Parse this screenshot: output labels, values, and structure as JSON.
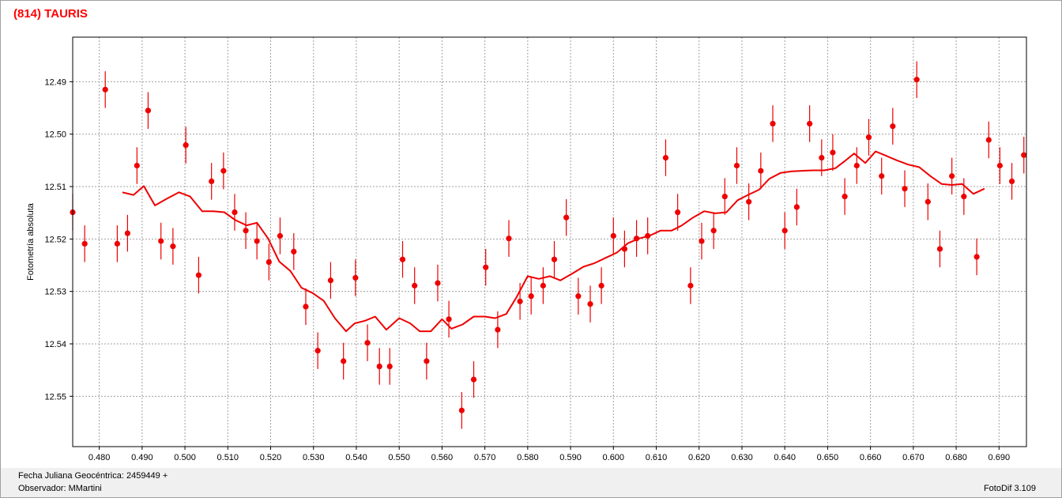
{
  "title": "(814) TAURIS",
  "footer": {
    "fecha": "Fecha Juliana Geocéntrica: 2459449 +",
    "observador": "Observador: MMartini",
    "version": "FotoDif 3.109"
  },
  "chart_data": {
    "type": "scatter",
    "ylabel": "Fotometría absoluta",
    "xlabel": "",
    "xlim": [
      0.4738,
      0.6964
    ],
    "ylim": [
      12.4815,
      12.5596
    ],
    "y_inverted": true,
    "grid": true,
    "x_ticks": [
      "0.480",
      "0.490",
      "0.500",
      "0.510",
      "0.520",
      "0.530",
      "0.540",
      "0.550",
      "0.560",
      "0.570",
      "0.580",
      "0.590",
      "0.600",
      "0.610",
      "0.620",
      "0.630",
      "0.640",
      "0.650",
      "0.660",
      "0.670",
      "0.680",
      "0.690"
    ],
    "y_ticks": [
      "12.49",
      "12.50",
      "12.51",
      "12.52",
      "12.53",
      "12.54",
      "12.55"
    ],
    "colors": {
      "series": "#ee0000",
      "grid": "#a0a0a0"
    },
    "observations": {
      "name": "",
      "error": 0.0035,
      "points": [
        [
          0.4738,
          12.5149
        ],
        [
          0.4766,
          12.5209
        ],
        [
          0.4814,
          12.4915
        ],
        [
          0.4842,
          12.5209
        ],
        [
          0.4866,
          12.5189
        ],
        [
          0.4888,
          12.506
        ],
        [
          0.4914,
          12.4955
        ],
        [
          0.4944,
          12.5204
        ],
        [
          0.4972,
          12.5214
        ],
        [
          0.5002,
          12.5021
        ],
        [
          0.5032,
          12.5269
        ],
        [
          0.5062,
          12.509
        ],
        [
          0.509,
          12.507
        ],
        [
          0.5116,
          12.5149
        ],
        [
          0.5142,
          12.5184
        ],
        [
          0.5168,
          12.5204
        ],
        [
          0.5196,
          12.5244
        ],
        [
          0.5222,
          12.5194
        ],
        [
          0.5254,
          12.5224
        ],
        [
          0.5282,
          12.5329
        ],
        [
          0.531,
          12.5413
        ],
        [
          0.534,
          12.5279
        ],
        [
          0.537,
          12.5433
        ],
        [
          0.5398,
          12.5274
        ],
        [
          0.5426,
          12.5398
        ],
        [
          0.5454,
          12.5443
        ],
        [
          0.5478,
          12.5443
        ],
        [
          0.5508,
          12.5239
        ],
        [
          0.5536,
          12.5289
        ],
        [
          0.5564,
          12.5433
        ],
        [
          0.559,
          12.5284
        ],
        [
          0.5616,
          12.5353
        ],
        [
          0.5646,
          12.5527
        ],
        [
          0.5674,
          12.5468
        ],
        [
          0.5702,
          12.5254
        ],
        [
          0.573,
          12.5373
        ],
        [
          0.5756,
          12.5199
        ],
        [
          0.5782,
          12.5319
        ],
        [
          0.5808,
          12.5309
        ],
        [
          0.5836,
          12.5289
        ],
        [
          0.5862,
          12.5239
        ],
        [
          0.589,
          12.5159
        ],
        [
          0.5918,
          12.5309
        ],
        [
          0.5946,
          12.5324
        ],
        [
          0.5972,
          12.5289
        ],
        [
          0.6,
          12.5194
        ],
        [
          0.6026,
          12.5219
        ],
        [
          0.6054,
          12.5199
        ],
        [
          0.608,
          12.5194
        ],
        [
          0.6122,
          12.5045
        ],
        [
          0.615,
          12.5149
        ],
        [
          0.618,
          12.5289
        ],
        [
          0.6206,
          12.5204
        ],
        [
          0.6234,
          12.5184
        ],
        [
          0.626,
          12.5119
        ],
        [
          0.6288,
          12.506
        ],
        [
          0.6316,
          12.5129
        ],
        [
          0.6344,
          12.507
        ],
        [
          0.6372,
          12.498
        ],
        [
          0.64,
          12.5184
        ],
        [
          0.6428,
          12.5139
        ],
        [
          0.6458,
          12.498
        ],
        [
          0.6486,
          12.5045
        ],
        [
          0.6512,
          12.5035
        ],
        [
          0.654,
          12.5119
        ],
        [
          0.6568,
          12.506
        ],
        [
          0.6596,
          12.5006
        ],
        [
          0.6626,
          12.508
        ],
        [
          0.6652,
          12.4985
        ],
        [
          0.668,
          12.5104
        ],
        [
          0.6708,
          12.4896
        ],
        [
          0.6734,
          12.5129
        ],
        [
          0.6762,
          12.5219
        ],
        [
          0.679,
          12.508
        ],
        [
          0.6818,
          12.5119
        ],
        [
          0.6848,
          12.5234
        ],
        [
          0.6876,
          12.5011
        ],
        [
          0.6902,
          12.506
        ],
        [
          0.693,
          12.509
        ],
        [
          0.6958,
          12.504
        ]
      ]
    },
    "smoothed": {
      "name": "",
      "points": [
        [
          0.4854,
          12.5111
        ],
        [
          0.488,
          12.5116
        ],
        [
          0.4904,
          12.5099
        ],
        [
          0.493,
          12.5136
        ],
        [
          0.4956,
          12.5124
        ],
        [
          0.4986,
          12.5111
        ],
        [
          0.5012,
          12.5119
        ],
        [
          0.504,
          12.5147
        ],
        [
          0.5066,
          12.5147
        ],
        [
          0.5092,
          12.5149
        ],
        [
          0.5118,
          12.5164
        ],
        [
          0.5144,
          12.5174
        ],
        [
          0.5168,
          12.5169
        ],
        [
          0.5194,
          12.5199
        ],
        [
          0.522,
          12.5243
        ],
        [
          0.5246,
          12.5261
        ],
        [
          0.5272,
          12.5293
        ],
        [
          0.5298,
          12.5303
        ],
        [
          0.5324,
          12.5318
        ],
        [
          0.535,
          12.5351
        ],
        [
          0.5376,
          12.5376
        ],
        [
          0.5396,
          12.5361
        ],
        [
          0.542,
          12.5356
        ],
        [
          0.5444,
          12.5348
        ],
        [
          0.547,
          12.5373
        ],
        [
          0.55,
          12.5351
        ],
        [
          0.5526,
          12.5361
        ],
        [
          0.5548,
          12.5376
        ],
        [
          0.5574,
          12.5376
        ],
        [
          0.56,
          12.5353
        ],
        [
          0.5622,
          12.5371
        ],
        [
          0.5648,
          12.5363
        ],
        [
          0.5674,
          12.5348
        ],
        [
          0.57,
          12.5348
        ],
        [
          0.5724,
          12.5351
        ],
        [
          0.575,
          12.5343
        ],
        [
          0.5774,
          12.5311
        ],
        [
          0.58,
          12.5271
        ],
        [
          0.5826,
          12.5276
        ],
        [
          0.5852,
          12.5271
        ],
        [
          0.5876,
          12.5279
        ],
        [
          0.5904,
          12.5266
        ],
        [
          0.593,
          12.5253
        ],
        [
          0.5956,
          12.5246
        ],
        [
          0.5982,
          12.5236
        ],
        [
          0.6008,
          12.5226
        ],
        [
          0.6034,
          12.5208
        ],
        [
          0.606,
          12.5199
        ],
        [
          0.6084,
          12.5194
        ],
        [
          0.611,
          12.5184
        ],
        [
          0.6136,
          12.5184
        ],
        [
          0.616,
          12.5174
        ],
        [
          0.6186,
          12.5159
        ],
        [
          0.6212,
          12.5147
        ],
        [
          0.6238,
          12.5151
        ],
        [
          0.6264,
          12.5149
        ],
        [
          0.629,
          12.5126
        ],
        [
          0.6314,
          12.5116
        ],
        [
          0.634,
          12.5106
        ],
        [
          0.6364,
          12.5085
        ],
        [
          0.639,
          12.5074
        ],
        [
          0.6416,
          12.5071
        ],
        [
          0.644,
          12.507
        ],
        [
          0.6466,
          12.5069
        ],
        [
          0.6492,
          12.5069
        ],
        [
          0.6518,
          12.5065
        ],
        [
          0.6542,
          12.505
        ],
        [
          0.6562,
          12.5037
        ],
        [
          0.6588,
          12.5055
        ],
        [
          0.6612,
          12.5033
        ],
        [
          0.6636,
          12.5041
        ],
        [
          0.6662,
          12.505
        ],
        [
          0.6688,
          12.5058
        ],
        [
          0.6714,
          12.5063
        ],
        [
          0.674,
          12.508
        ],
        [
          0.6766,
          12.5095
        ],
        [
          0.679,
          12.5097
        ],
        [
          0.6814,
          12.5095
        ],
        [
          0.684,
          12.5114
        ],
        [
          0.6866,
          12.5104
        ]
      ]
    }
  }
}
